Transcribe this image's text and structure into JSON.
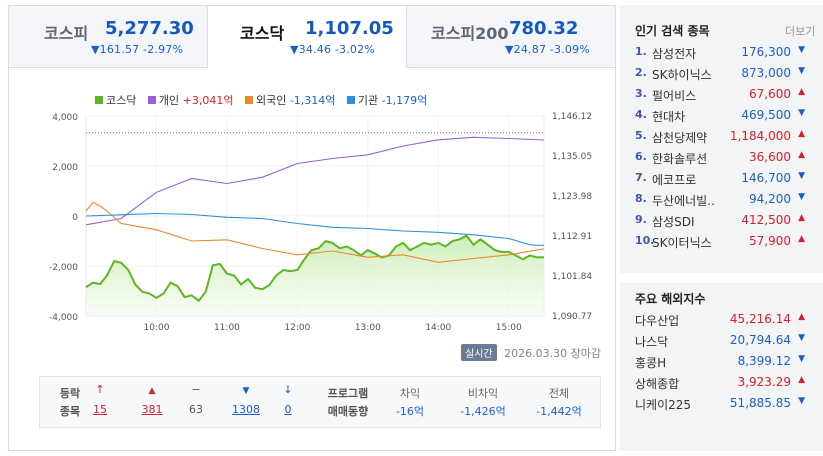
{
  "tabs": [
    {
      "name": "코스피",
      "value": "5,277.30",
      "change": "▼161.57 -2.97%",
      "active": false
    },
    {
      "name": "코스닥",
      "value": "1,107.05",
      "change": "▼34.46 -3.02%",
      "active": true
    },
    {
      "name": "코스피200",
      "value": "780.32",
      "change": "▼24.87 -3.09%",
      "active": false
    }
  ],
  "legend": {
    "kosdaq": "코스닥",
    "individual_label": "개인",
    "individual_value": "+3,041억",
    "foreign_label": "외국인",
    "foreign_value": "-1,314억",
    "institution_label": "기관",
    "institution_value": "-1,179억"
  },
  "colors": {
    "kosdaq": "#5cb722",
    "individual": "#9b5fd2",
    "foreign": "#e88a2c",
    "institution": "#2d8fe0",
    "up": "#d4202b",
    "down": "#1a5fc8"
  },
  "chart_data": {
    "type": "line",
    "title": "",
    "xlabel": "",
    "ylabel": "",
    "x_range": [
      9.0,
      15.5
    ],
    "left_axis": {
      "ticks": [
        4000,
        2000,
        0,
        -2000,
        -4000
      ],
      "tick_labels": [
        "4,000",
        "2,000",
        "0",
        "-2,000",
        "-4,000"
      ],
      "ylim": [
        -4000,
        4000
      ],
      "unit": "억"
    },
    "right_axis": {
      "ticks": [
        1146.12,
        1135.05,
        1123.98,
        1112.91,
        1101.84,
        1090.77
      ],
      "tick_labels": [
        "1,146.12",
        "1,135.05",
        "1,123.98",
        "1,112.91",
        "1,101.84",
        "1,090.77"
      ],
      "ylim": [
        1090.77,
        1146.12
      ]
    },
    "x_ticks": [
      10,
      11,
      12,
      13,
      14,
      15
    ],
    "x_tick_labels": [
      "10:00",
      "11:00",
      "12:00",
      "13:00",
      "14:00",
      "15:00"
    ],
    "reference_line": {
      "axis": "right",
      "value": 1141.5,
      "note": "dotted previous close"
    },
    "series": [
      {
        "name": "코스닥",
        "axis": "right",
        "x": [
          9.0,
          9.1,
          9.2,
          9.3,
          9.4,
          9.5,
          9.6,
          9.7,
          9.8,
          9.9,
          10.0,
          10.1,
          10.2,
          10.3,
          10.4,
          10.5,
          10.6,
          10.7,
          10.8,
          10.9,
          11.0,
          11.1,
          11.2,
          11.3,
          11.4,
          11.5,
          11.6,
          11.7,
          11.8,
          11.9,
          12.0,
          12.1,
          12.2,
          12.3,
          12.4,
          12.5,
          12.6,
          12.7,
          12.8,
          12.9,
          13.0,
          13.1,
          13.2,
          13.3,
          13.4,
          13.5,
          13.6,
          13.7,
          13.8,
          13.9,
          14.0,
          14.1,
          14.2,
          14.3,
          14.4,
          14.5,
          14.6,
          14.7,
          14.8,
          14.9,
          15.0,
          15.1,
          15.2,
          15.3,
          15.4,
          15.5
        ],
        "values": [
          1098.7,
          1100.0,
          1099.6,
          1102.0,
          1106.0,
          1105.5,
          1103.5,
          1099.5,
          1097.5,
          1097.0,
          1095.8,
          1097.0,
          1100.0,
          1099.0,
          1096.0,
          1096.5,
          1095.0,
          1097.5,
          1104.8,
          1105.2,
          1102.5,
          1102.0,
          1099.5,
          1101.0,
          1098.6,
          1098.2,
          1099.3,
          1102.0,
          1103.5,
          1103.2,
          1103.5,
          1106.5,
          1109.0,
          1109.5,
          1111.5,
          1111.0,
          1109.5,
          1110.0,
          1109.0,
          1107.5,
          1109.0,
          1108.0,
          1107.0,
          1107.5,
          1110.0,
          1111.0,
          1109.0,
          1110.0,
          1111.0,
          1110.5,
          1111.0,
          1110.0,
          1111.5,
          1112.0,
          1113.0,
          1110.5,
          1112.0,
          1110.5,
          1109.0,
          1108.5,
          1108.5,
          1107.5,
          1106.5,
          1107.5,
          1107.0,
          1107.05
        ]
      },
      {
        "name": "개인",
        "axis": "left",
        "x": [
          9.0,
          9.5,
          10.0,
          10.5,
          11.0,
          11.5,
          12.0,
          12.5,
          13.0,
          13.5,
          14.0,
          14.5,
          15.0,
          15.5
        ],
        "values": [
          -350,
          -100,
          950,
          1500,
          1300,
          1550,
          2100,
          2300,
          2450,
          2800,
          3050,
          3150,
          3100,
          3041
        ]
      },
      {
        "name": "외국인",
        "axis": "left",
        "x": [
          9.0,
          9.1,
          9.2,
          9.3,
          9.5,
          10.0,
          10.5,
          11.0,
          11.5,
          12.0,
          12.5,
          13.0,
          13.5,
          14.0,
          14.5,
          15.0,
          15.5
        ],
        "values": [
          200,
          550,
          400,
          200,
          -300,
          -550,
          -1000,
          -950,
          -1300,
          -1550,
          -1400,
          -1650,
          -1550,
          -1850,
          -1700,
          -1550,
          -1314
        ]
      },
      {
        "name": "기관",
        "axis": "left",
        "x": [
          9.0,
          9.5,
          10.0,
          10.5,
          11.0,
          11.5,
          12.0,
          12.5,
          13.0,
          13.5,
          14.0,
          14.5,
          15.0,
          15.3,
          15.5
        ],
        "values": [
          0,
          50,
          100,
          60,
          -50,
          -100,
          -300,
          -450,
          -500,
          -600,
          -650,
          -750,
          -900,
          -1150,
          -1179
        ]
      }
    ]
  },
  "footer": {
    "badge": "실시간",
    "date": "2026.03.30",
    "status": "장마감"
  },
  "stats": {
    "label_line1": "등락",
    "label_line2": "종목",
    "cols": [
      {
        "icon": "↑",
        "value": "15",
        "tone": "up"
      },
      {
        "icon": "▲",
        "value": "381",
        "tone": "up"
      },
      {
        "icon": "−",
        "value": "63",
        "tone": "flat"
      },
      {
        "icon": "▼",
        "value": "1308",
        "tone": "dn"
      },
      {
        "icon": "↓",
        "value": "0",
        "tone": "dn"
      }
    ],
    "program_line1": "프로그램",
    "program_line2": "매매동향",
    "program": [
      {
        "label": "차익",
        "value": "-16억"
      },
      {
        "label": "비차익",
        "value": "-1,426억"
      },
      {
        "label": "전체",
        "value": "-1,442억"
      }
    ]
  },
  "popular": {
    "title": "인기 검색 종목",
    "more": "더보기",
    "items": [
      {
        "rank": "1.",
        "name": "삼성전자",
        "price": "176,300",
        "dir": "▼",
        "tone": "dn"
      },
      {
        "rank": "2.",
        "name": "SK하이닉스",
        "price": "873,000",
        "dir": "▼",
        "tone": "dn"
      },
      {
        "rank": "3.",
        "name": "펄어비스",
        "price": "67,600",
        "dir": "▲",
        "tone": "up"
      },
      {
        "rank": "4.",
        "name": "현대차",
        "price": "469,500",
        "dir": "▼",
        "tone": "dn"
      },
      {
        "rank": "5.",
        "name": "삼천당제약",
        "price": "1,184,000",
        "dir": "▲",
        "tone": "up"
      },
      {
        "rank": "6.",
        "name": "한화솔루션",
        "price": "36,600",
        "dir": "▲",
        "tone": "up"
      },
      {
        "rank": "7.",
        "name": "에코프로",
        "price": "146,700",
        "dir": "▼",
        "tone": "dn"
      },
      {
        "rank": "8.",
        "name": "두산에너빌..",
        "price": "94,200",
        "dir": "▼",
        "tone": "dn"
      },
      {
        "rank": "9.",
        "name": "삼성SDI",
        "price": "412,500",
        "dir": "▲",
        "tone": "up"
      },
      {
        "rank": "10.",
        "name": "SK이터닉스",
        "price": "57,900",
        "dir": "▲",
        "tone": "up"
      }
    ]
  },
  "world": {
    "title": "주요 해외지수",
    "items": [
      {
        "name": "다우산업",
        "price": "45,216.14",
        "dir": "▲",
        "tone": "up"
      },
      {
        "name": "나스닥",
        "price": "20,794.64",
        "dir": "▼",
        "tone": "dn"
      },
      {
        "name": "홍콩H",
        "price": "8,399.12",
        "dir": "▼",
        "tone": "dn"
      },
      {
        "name": "상해종합",
        "price": "3,923.29",
        "dir": "▲",
        "tone": "up"
      },
      {
        "name": "니케이225",
        "price": "51,885.85",
        "dir": "▼",
        "tone": "dn"
      }
    ]
  }
}
